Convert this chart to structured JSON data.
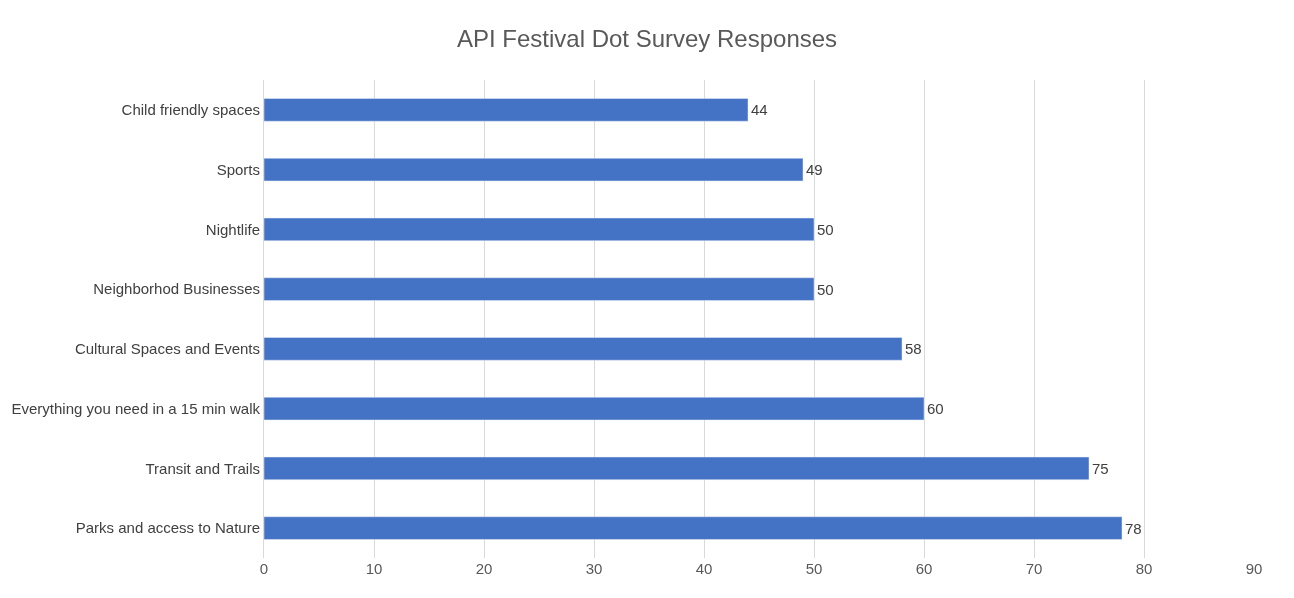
{
  "chart_data": {
    "type": "bar",
    "orientation": "horizontal",
    "title": "API Festival Dot Survey Responses",
    "categories": [
      "Child friendly spaces",
      "Sports",
      "Nightlife",
      "Neighborhod Businesses",
      "Cultural Spaces and Events",
      "Everything you need in a 15 min walk",
      "Transit and Trails",
      "Parks and access to Nature"
    ],
    "values": [
      44,
      49,
      50,
      50,
      58,
      60,
      75,
      78
    ],
    "color": "#4472c4",
    "data_labels": true,
    "xlim": [
      0,
      90
    ],
    "xticks": [
      0,
      10,
      20,
      30,
      40,
      50,
      60,
      70,
      80,
      90
    ],
    "grid": "x"
  }
}
